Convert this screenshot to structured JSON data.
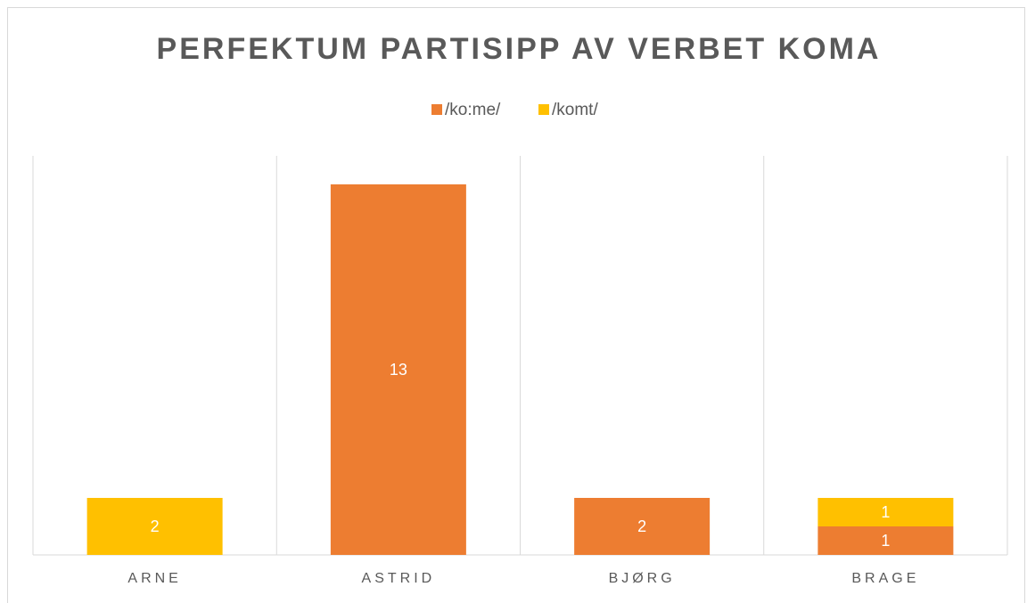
{
  "chart_data": {
    "type": "stacked-bar",
    "title": "PERFEKTUM PARTISIPP AV VERBET KOMA",
    "categories": [
      "ARNE",
      "ASTRID",
      "BJØRG",
      "BRAGE"
    ],
    "series": [
      {
        "name": "/ko:me/",
        "color": "#ED7D31",
        "values": [
          0,
          13,
          2,
          1
        ]
      },
      {
        "name": "/komt/",
        "color": "#FFC000",
        "values": [
          2,
          0,
          0,
          1
        ]
      }
    ],
    "ylim": [
      0,
      14
    ]
  }
}
